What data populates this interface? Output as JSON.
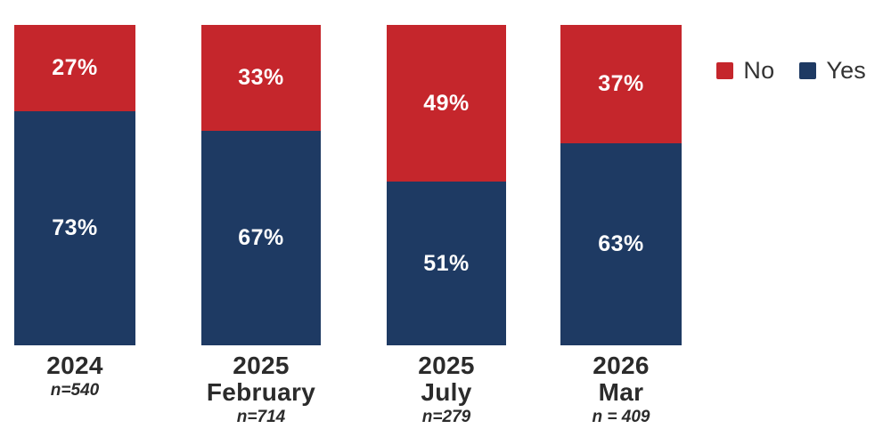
{
  "chart_data": {
    "type": "bar",
    "stacked": true,
    "orientation": "vertical",
    "title": "",
    "xlabel": "",
    "ylabel": "",
    "ylim": [
      0,
      100
    ],
    "grid": false,
    "axes_visible": false,
    "value_suffix": "%",
    "categories": [
      "2024",
      "2025 February",
      "2025 July",
      "2026 Mar"
    ],
    "category_label_lines": [
      [
        "2024"
      ],
      [
        "2025",
        "February"
      ],
      [
        "2025",
        "July"
      ],
      [
        "2026",
        "Mar"
      ]
    ],
    "n_labels": [
      "n=540",
      "n=714",
      "n=279",
      "n = 409"
    ],
    "series": [
      {
        "name": "No",
        "color": "#c5262c",
        "values": [
          27,
          33,
          49,
          37
        ]
      },
      {
        "name": "Yes",
        "color": "#1e3a63",
        "values": [
          73,
          67,
          51,
          63
        ]
      }
    ],
    "stack_order_top_to_bottom": [
      "No",
      "Yes"
    ],
    "legend_position": "top-right",
    "legend_entries": [
      {
        "label": "No",
        "color": "#c5262c"
      },
      {
        "label": "Yes",
        "color": "#1e3a63"
      }
    ]
  },
  "colors": {
    "background": "#ffffff",
    "no_red": "#c5262c",
    "yes_navy": "#1e3a63",
    "label_text": "#2b2b2b",
    "value_text": "#ffffff"
  }
}
